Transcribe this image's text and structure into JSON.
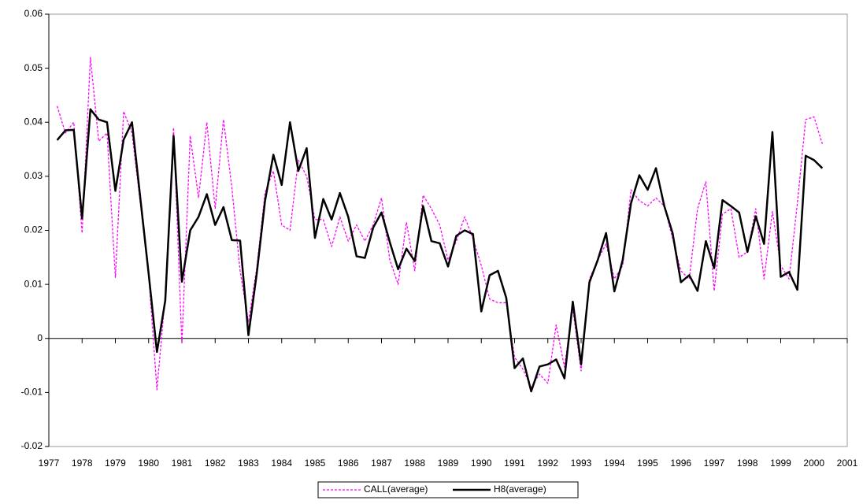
{
  "chart_data": {
    "type": "line",
    "x": [
      1977.25,
      1977.5,
      1977.75,
      1978,
      1978.25,
      1978.5,
      1978.75,
      1979,
      1979.25,
      1979.5,
      1979.75,
      1980,
      1980.25,
      1980.5,
      1980.75,
      1981,
      1981.25,
      1981.5,
      1981.75,
      1982,
      1982.25,
      1982.5,
      1982.75,
      1983,
      1983.25,
      1983.5,
      1983.75,
      1984,
      1984.25,
      1984.5,
      1984.75,
      1985,
      1985.25,
      1985.5,
      1985.75,
      1986,
      1986.25,
      1986.5,
      1986.75,
      1987,
      1987.25,
      1987.5,
      1987.75,
      1988,
      1988.25,
      1988.5,
      1988.75,
      1989,
      1989.25,
      1989.5,
      1989.75,
      1990,
      1990.25,
      1990.5,
      1990.75,
      1991,
      1991.25,
      1991.5,
      1991.75,
      1992,
      1992.25,
      1992.5,
      1992.75,
      1993,
      1993.25,
      1993.5,
      1993.75,
      1994,
      1994.25,
      1994.5,
      1994.75,
      1995,
      1995.25,
      1995.5,
      1995.75,
      1996,
      1996.25,
      1996.5,
      1996.75,
      1997,
      1997.25,
      1997.5,
      1997.75,
      1998,
      1998.25,
      1998.5,
      1998.75,
      1999,
      1999.25,
      1999.5,
      1999.75,
      2000,
      2000.25
    ],
    "series": [
      {
        "name": "CALL(average)",
        "color": "#ff00ff",
        "dashed": true,
        "values": [
          0.043,
          0.038,
          0.04,
          0.0195,
          0.052,
          0.0365,
          0.038,
          0.0113,
          0.042,
          0.038,
          0.025,
          0.012,
          -0.0095,
          0.008,
          0.039,
          -0.001,
          0.0375,
          0.026,
          0.04,
          0.024,
          0.0405,
          0.028,
          0.0125,
          0.003,
          0.013,
          0.027,
          0.031,
          0.021,
          0.02,
          0.033,
          0.03,
          0.022,
          0.022,
          0.017,
          0.0225,
          0.018,
          0.021,
          0.018,
          0.021,
          0.026,
          0.0145,
          0.01,
          0.0215,
          0.0125,
          0.0265,
          0.024,
          0.021,
          0.0145,
          0.018,
          0.0225,
          0.0185,
          0.0135,
          0.0073,
          0.0066,
          0.0066,
          -0.0035,
          -0.0057,
          -0.009,
          -0.0066,
          -0.0083,
          0.0025,
          -0.0053,
          0.0055,
          -0.006,
          0.011,
          0.0145,
          0.0175,
          0.011,
          0.0135,
          0.0275,
          0.0255,
          0.0245,
          0.026,
          0.0245,
          0.0185,
          0.0125,
          0.011,
          0.024,
          0.029,
          0.0088,
          0.023,
          0.024,
          0.015,
          0.016,
          0.024,
          0.011,
          0.0235,
          0.0135,
          0.011,
          0.025,
          0.0405,
          0.041,
          0.036
        ]
      },
      {
        "name": "H8(average)",
        "color": "#000000",
        "dashed": false,
        "values": [
          0.0367,
          0.0385,
          0.0386,
          0.0222,
          0.0424,
          0.0405,
          0.04,
          0.0273,
          0.0368,
          0.04,
          0.026,
          0.012,
          -0.0025,
          0.007,
          0.0375,
          0.0105,
          0.02,
          0.0225,
          0.0267,
          0.021,
          0.0243,
          0.0182,
          0.0181,
          0.0006,
          0.012,
          0.0255,
          0.034,
          0.0284,
          0.04,
          0.031,
          0.0352,
          0.0186,
          0.0258,
          0.022,
          0.0269,
          0.0225,
          0.0152,
          0.0149,
          0.0205,
          0.0233,
          0.0178,
          0.0128,
          0.0166,
          0.0143,
          0.0245,
          0.018,
          0.0176,
          0.0133,
          0.019,
          0.02,
          0.0193,
          0.005,
          0.0117,
          0.0125,
          0.0075,
          -0.0055,
          -0.0037,
          -0.0098,
          -0.0052,
          -0.0048,
          -0.0039,
          -0.0074,
          0.0068,
          -0.0048,
          0.0104,
          0.0145,
          0.0195,
          0.0087,
          0.0145,
          0.025,
          0.0302,
          0.0275,
          0.0315,
          0.0245,
          0.0195,
          0.0104,
          0.0117,
          0.0088,
          0.018,
          0.013,
          0.0256,
          0.0245,
          0.0233,
          0.016,
          0.0226,
          0.0175,
          0.0382,
          0.0114,
          0.0123,
          0.009,
          0.0338,
          0.033,
          0.0315
        ]
      }
    ],
    "xlim": [
      1977,
      2001
    ],
    "xticks": [
      1977,
      1978,
      1979,
      1980,
      1981,
      1982,
      1983,
      1984,
      1985,
      1986,
      1987,
      1988,
      1989,
      1990,
      1991,
      1992,
      1993,
      1994,
      1995,
      1996,
      1997,
      1998,
      1999,
      2000,
      2001
    ],
    "ylim": [
      -0.02,
      0.06
    ],
    "yticks": [
      -0.02,
      -0.01,
      0,
      0.01,
      0.02,
      0.03,
      0.04,
      0.05,
      0.06
    ],
    "legend": "bottom"
  }
}
